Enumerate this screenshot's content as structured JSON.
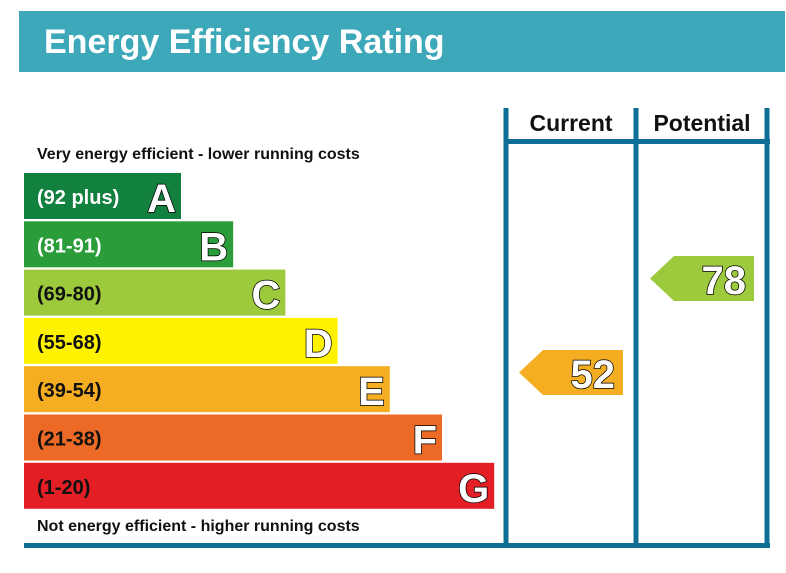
{
  "title": "Energy Efficiency Rating",
  "chart_data": {
    "type": "bar",
    "title": "Energy Efficiency Rating",
    "top_note": "Very energy efficient - lower running costs",
    "bottom_note": "Not energy efficient - higher running costs",
    "columns": [
      "Current",
      "Potential"
    ],
    "bands": [
      {
        "letter": "A",
        "range": "(92 plus)",
        "color": "#12803f"
      },
      {
        "letter": "B",
        "range": "(81-91)",
        "color": "#2a9c3a"
      },
      {
        "letter": "C",
        "range": "(69-80)",
        "color": "#9dca3c"
      },
      {
        "letter": "D",
        "range": "(55-68)",
        "color": "#fff200"
      },
      {
        "letter": "E",
        "range": "(39-54)",
        "color": "#f5ad22"
      },
      {
        "letter": "F",
        "range": "(21-38)",
        "color": "#ec6a25"
      },
      {
        "letter": "G",
        "range": "(1-20)",
        "color": "#e31e24"
      }
    ],
    "current": {
      "value": 52,
      "band": "E",
      "color": "#f5ad22"
    },
    "potential": {
      "value": 78,
      "band": "C",
      "color": "#9dca3c"
    }
  },
  "colors": {
    "header": "#3da8b9",
    "lines": "#0e6e96"
  }
}
